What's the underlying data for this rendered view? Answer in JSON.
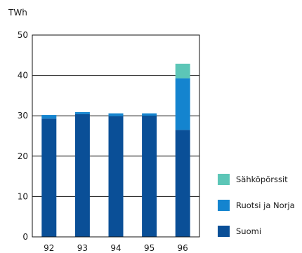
{
  "chart_data": {
    "type": "bar",
    "stacked": true,
    "title": "",
    "xlabel": "",
    "ylabel": "TWh",
    "ylim": [
      0,
      50
    ],
    "yticks": [
      "0",
      "10",
      "20",
      "30",
      "40",
      "50"
    ],
    "categories": [
      "92",
      "93",
      "94",
      "95",
      "96"
    ],
    "series": [
      {
        "name": "Suomi",
        "color": "#0a4f97",
        "values": [
          29.3,
          30.4,
          29.9,
          30.0,
          26.5
        ]
      },
      {
        "name": "Ruotsi ja Norja",
        "color": "#1484cf",
        "values": [
          0.9,
          0.5,
          0.7,
          0.6,
          12.8
        ]
      },
      {
        "name": "Sähköpörssit",
        "color": "#5cc6b7",
        "values": [
          0,
          0,
          0,
          0,
          3.6
        ]
      }
    ],
    "grid": "horizontal",
    "legend_position": "right"
  }
}
